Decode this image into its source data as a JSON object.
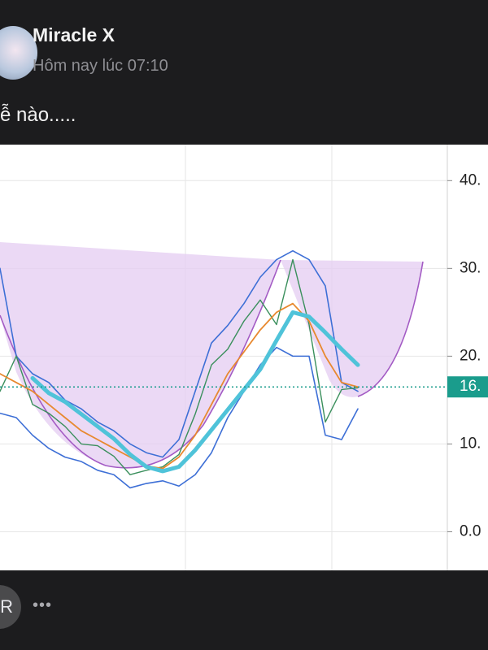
{
  "post": {
    "author": "Miracle X",
    "time": "Hôm nay lúc 07:10",
    "text": "ễ nào....."
  },
  "footer": {
    "avatar": "R",
    "more": "•••"
  },
  "chart_data": {
    "type": "line",
    "x": [
      0,
      1,
      2,
      3,
      4,
      5,
      6,
      7,
      8,
      9,
      10,
      11,
      12,
      13,
      14,
      15,
      16,
      17,
      18,
      19,
      20,
      21,
      22
    ],
    "xlim": [
      0,
      27.5
    ],
    "ylim": [
      -4.4,
      44.1
    ],
    "yticks": [
      {
        "value": 40,
        "label": "40."
      },
      {
        "value": 30,
        "label": "30."
      },
      {
        "value": 20,
        "label": "20."
      },
      {
        "value": 10,
        "label": "10."
      },
      {
        "value": 0,
        "label": "0.0"
      }
    ],
    "grid": true,
    "price_marker": {
      "value": 16.5,
      "label": "16.",
      "color": "#1a9c8c"
    },
    "series": [
      {
        "color": "#3d6fd6",
        "width": 1.6,
        "values": [
          30,
          20,
          18,
          17,
          15,
          14,
          12.5,
          11.5,
          10,
          9,
          8.5,
          10.5,
          16,
          21.5,
          23.5,
          26,
          29,
          31,
          32,
          31,
          28,
          17,
          16
        ]
      },
      {
        "color": "#3d6fd6",
        "width": 1.6,
        "values": [
          13.5,
          13,
          11,
          9.5,
          8.5,
          8,
          7,
          6.5,
          5,
          5.5,
          5.8,
          5.2,
          6.5,
          9,
          13,
          16,
          19,
          21,
          20,
          20,
          11,
          10.5,
          14
        ]
      },
      {
        "color": "#3a8f5c",
        "width": 1.4,
        "values": [
          16,
          20,
          14.5,
          13.5,
          12,
          10,
          9.8,
          8.6,
          6.5,
          7,
          7.4,
          8.8,
          13.4,
          19,
          20.8,
          24,
          26.4,
          23.6,
          31,
          23.6,
          12.5,
          16.2,
          16.4
        ]
      },
      {
        "color": "#e8892f",
        "width": 1.8,
        "values": [
          18,
          17,
          16,
          14.5,
          13,
          11.5,
          10.5,
          9.5,
          8.5,
          7.5,
          7.2,
          8.5,
          11,
          14.5,
          18,
          20.5,
          23,
          25,
          26,
          24,
          20,
          17,
          16.5
        ]
      },
      {
        "color": "#4fc3d9",
        "width": 5,
        "values": [
          null,
          null,
          17.5,
          15.8,
          14.8,
          13.4,
          12,
          10.6,
          8.8,
          7.4,
          6.9,
          7.4,
          9.3,
          11.6,
          13.9,
          16.2,
          18.5,
          21.8,
          25,
          24.5,
          22.7,
          20.8,
          19
        ]
      }
    ]
  }
}
